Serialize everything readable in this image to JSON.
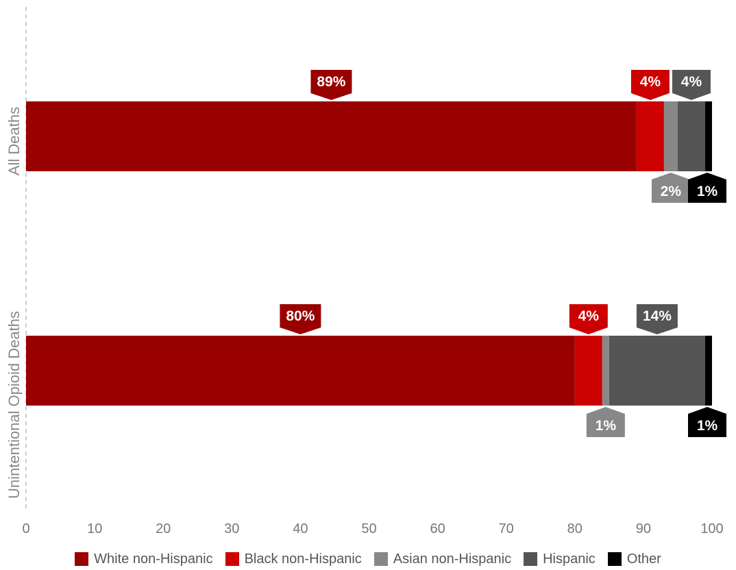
{
  "chart_data": {
    "type": "bar",
    "orientation": "horizontal",
    "stacked": true,
    "categories": [
      "All Deaths",
      "Unintentional Opioid Deaths"
    ],
    "series": [
      {
        "name": "White non-Hispanic",
        "color": "#990000",
        "values": [
          89,
          80
        ],
        "labels": [
          "89%",
          "80%"
        ]
      },
      {
        "name": "Black non-Hispanic",
        "color": "#cc0000",
        "values": [
          4,
          4
        ],
        "labels": [
          "4%",
          "4%"
        ]
      },
      {
        "name": "Asian non-Hispanic",
        "color": "#888888",
        "values": [
          2,
          1
        ],
        "labels": [
          "2%",
          "1%"
        ]
      },
      {
        "name": "Hispanic",
        "color": "#555555",
        "values": [
          4,
          14
        ],
        "labels": [
          "4%",
          "14%"
        ]
      },
      {
        "name": "Other",
        "color": "#000000",
        "values": [
          1,
          1
        ],
        "labels": [
          "1%",
          "1%"
        ]
      }
    ],
    "xlim": [
      0,
      100
    ],
    "xticks": [
      "0",
      "10",
      "20",
      "30",
      "40",
      "50",
      "60",
      "70",
      "80",
      "90",
      "100"
    ],
    "label_positions": [
      "above",
      "above",
      "below",
      "above",
      "below"
    ],
    "grid": false,
    "legend_position": "bottom"
  }
}
